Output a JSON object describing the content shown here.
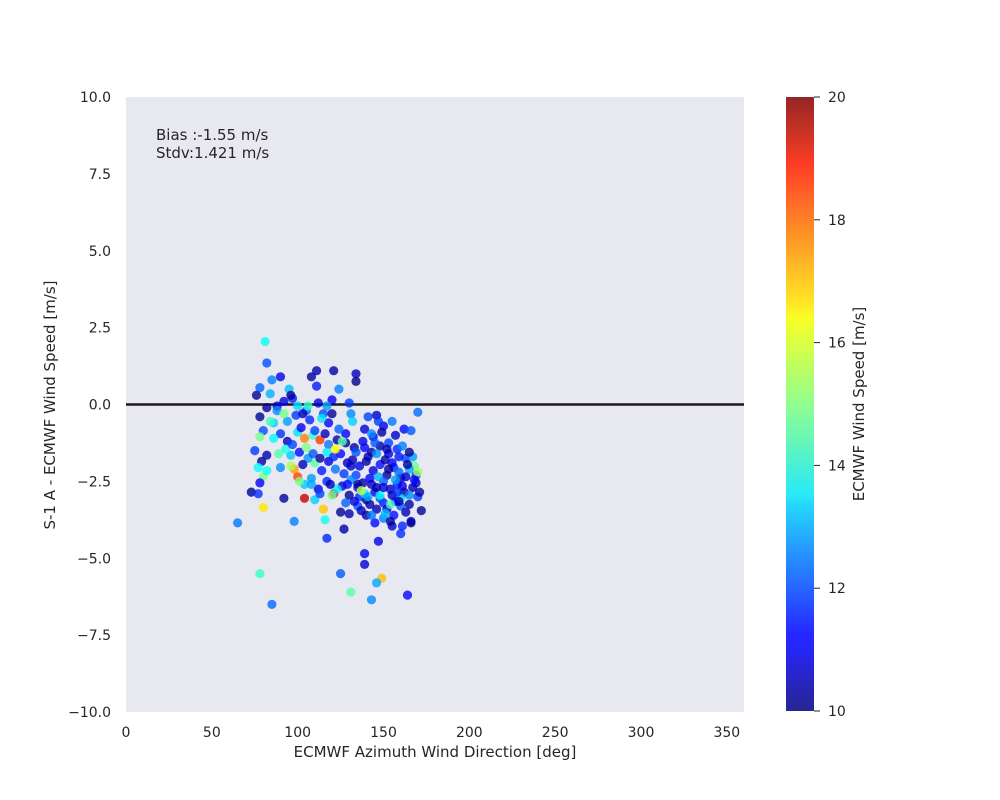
{
  "chart_data": {
    "type": "scatter",
    "title": "",
    "xlabel": "ECMWF Azimuth Wind Direction [deg]",
    "ylabel": "S-1 A - ECMWF Wind Speed [m/s]",
    "xlim": [
      0,
      360
    ],
    "ylim": [
      -10,
      10
    ],
    "xticks": [
      0,
      50,
      100,
      150,
      200,
      250,
      300,
      350
    ],
    "yticks": [
      -10.0,
      -7.5,
      -5.0,
      -2.5,
      0.0,
      2.5,
      5.0,
      7.5,
      10.0
    ],
    "ytick_labels": [
      "−10.0",
      "−7.5",
      "−5.0",
      "−2.5",
      "0.0",
      "2.5",
      "5.0",
      "7.5",
      "10.0"
    ],
    "background": "#e8e8f0",
    "grid": false,
    "zero_line": {
      "y": 0,
      "color": "#1a1a1a"
    },
    "annotations": [
      "Bias :-1.55 m/s",
      "Stdv:1.421 m/s"
    ],
    "colorbar": {
      "label": "ECMWF Wind Speed [m/s]",
      "colormap": "jet",
      "range": [
        10,
        20
      ],
      "ticks": [
        10,
        12,
        14,
        16,
        18,
        20
      ]
    },
    "points": [
      [
        81,
        2.05,
        13.8
      ],
      [
        82,
        1.35,
        12.0
      ],
      [
        78,
        0.55,
        12.2
      ],
      [
        84,
        0.35,
        13.0
      ],
      [
        90,
        0.9,
        11.0
      ],
      [
        97,
        0.2,
        11.5
      ],
      [
        76,
        0.3,
        10.2
      ],
      [
        85,
        0.8,
        12.5
      ],
      [
        108,
        0.9,
        10.3
      ],
      [
        111,
        1.1,
        10.5
      ],
      [
        121,
        1.1,
        10.4
      ],
      [
        134,
        1.0,
        10.6
      ],
      [
        134,
        0.75,
        10.1
      ],
      [
        111,
        0.6,
        11.5
      ],
      [
        124,
        0.5,
        12.5
      ],
      [
        95,
        0.5,
        13.1
      ],
      [
        130,
        0.05,
        11.8
      ],
      [
        120,
        0.15,
        11.2
      ],
      [
        112,
        0.05,
        10.9
      ],
      [
        88,
        -0.05,
        10.8
      ],
      [
        92,
        0.1,
        11.0
      ],
      [
        105,
        -0.2,
        12.2
      ],
      [
        115,
        -0.3,
        12.0
      ],
      [
        82,
        -0.1,
        10.3
      ],
      [
        78,
        -0.4,
        10.2
      ],
      [
        99,
        -0.35,
        11.8
      ],
      [
        107,
        -0.5,
        11.6
      ],
      [
        118,
        -0.6,
        11.2
      ],
      [
        131,
        -0.3,
        12.6
      ],
      [
        141,
        -0.4,
        11.9
      ],
      [
        146,
        -0.35,
        10.7
      ],
      [
        150,
        -0.7,
        11.0
      ],
      [
        155,
        -0.55,
        12.4
      ],
      [
        162,
        -0.8,
        11.3
      ],
      [
        166,
        -0.85,
        12.1
      ],
      [
        170,
        -0.25,
        12.3
      ],
      [
        80,
        -0.85,
        12.0
      ],
      [
        86,
        -0.6,
        13.3
      ],
      [
        90,
        -0.95,
        11.7
      ],
      [
        94,
        -1.2,
        10.6
      ],
      [
        100,
        -0.9,
        13.5
      ],
      [
        104,
        -1.1,
        17.5
      ],
      [
        109,
        -1.0,
        14.2
      ],
      [
        113,
        -1.15,
        18.2
      ],
      [
        118,
        -1.3,
        12.4
      ],
      [
        123,
        -1.15,
        10.4
      ],
      [
        128,
        -0.95,
        11.2
      ],
      [
        133,
        -1.4,
        10.3
      ],
      [
        138,
        -1.2,
        11.0
      ],
      [
        143,
        -1.55,
        10.2
      ],
      [
        148,
        -1.35,
        10.4
      ],
      [
        153,
        -1.6,
        11.1
      ],
      [
        158,
        -1.45,
        11.6
      ],
      [
        163,
        -1.75,
        11.9
      ],
      [
        167,
        -1.7,
        12.8
      ],
      [
        78,
        -1.05,
        14.9
      ],
      [
        82,
        -1.65,
        10.5
      ],
      [
        79,
        -1.85,
        10.3
      ],
      [
        75,
        -1.5,
        11.8
      ],
      [
        77,
        -2.05,
        13.8
      ],
      [
        80,
        -2.35,
        15.0
      ],
      [
        82,
        -2.15,
        13.8
      ],
      [
        90,
        -2.05,
        12.6
      ],
      [
        98,
        -2.1,
        17.2
      ],
      [
        100,
        -2.35,
        18.1
      ],
      [
        104,
        -2.6,
        13.2
      ],
      [
        108,
        -2.4,
        12.8
      ],
      [
        112,
        -2.75,
        11.0
      ],
      [
        117,
        -2.5,
        11.6
      ],
      [
        121,
        -2.9,
        18.8
      ],
      [
        126,
        -2.65,
        10.8
      ],
      [
        130,
        -2.95,
        10.2
      ],
      [
        135,
        -2.7,
        11.4
      ],
      [
        140,
        -3.1,
        10.1
      ],
      [
        145,
        -2.85,
        11.1
      ],
      [
        150,
        -3.2,
        11.5
      ],
      [
        155,
        -2.95,
        10.6
      ],
      [
        160,
        -3.3,
        12.1
      ],
      [
        165,
        -3.25,
        10.4
      ],
      [
        170,
        -3.0,
        11.8
      ],
      [
        172,
        -3.45,
        10.2
      ],
      [
        104,
        -3.05,
        19.3
      ],
      [
        110,
        -3.1,
        13.3
      ],
      [
        115,
        -3.4,
        16.8
      ],
      [
        120,
        -2.95,
        14.8
      ],
      [
        125,
        -3.5,
        10.2
      ],
      [
        130,
        -3.55,
        10.5
      ],
      [
        135,
        -3.3,
        12.0
      ],
      [
        140,
        -3.6,
        10.3
      ],
      [
        145,
        -3.85,
        11.3
      ],
      [
        150,
        -3.7,
        12.5
      ],
      [
        155,
        -3.95,
        10.8
      ],
      [
        160,
        -4.2,
        11.7
      ],
      [
        166,
        -3.8,
        10.9
      ],
      [
        116,
        -3.75,
        13.9
      ],
      [
        98,
        -3.8,
        12.5
      ],
      [
        80,
        -3.35,
        16.5
      ],
      [
        65,
        -3.85,
        12.4
      ],
      [
        73,
        -2.85,
        10.2
      ],
      [
        77,
        -2.9,
        11.7
      ],
      [
        78,
        -2.55,
        11.2
      ],
      [
        92,
        -3.05,
        10.3
      ],
      [
        117,
        -4.35,
        11.6
      ],
      [
        127,
        -4.05,
        10.4
      ],
      [
        147,
        -4.45,
        11.0
      ],
      [
        139,
        -4.85,
        11.1
      ],
      [
        139,
        -5.2,
        10.8
      ],
      [
        125,
        -5.5,
        12.1
      ],
      [
        149,
        -5.65,
        16.9
      ],
      [
        146,
        -5.8,
        12.9
      ],
      [
        131,
        -6.1,
        14.6
      ],
      [
        143,
        -6.35,
        12.6
      ],
      [
        164,
        -6.2,
        11.3
      ],
      [
        85,
        -6.5,
        12.3
      ],
      [
        78,
        -5.5,
        14.3
      ],
      [
        132,
        -1.8,
        10.4
      ],
      [
        136,
        -2.0,
        11.0
      ],
      [
        140,
        -1.85,
        10.2
      ],
      [
        144,
        -2.15,
        10.9
      ],
      [
        148,
        -1.95,
        11.4
      ],
      [
        152,
        -2.3,
        10.3
      ],
      [
        156,
        -2.05,
        11.7
      ],
      [
        160,
        -2.4,
        10.6
      ],
      [
        134,
        -2.3,
        11.9
      ],
      [
        138,
        -2.55,
        10.5
      ],
      [
        142,
        -2.4,
        11.2
      ],
      [
        146,
        -2.7,
        10.2
      ],
      [
        150,
        -2.5,
        12.2
      ],
      [
        154,
        -2.75,
        10.7
      ],
      [
        158,
        -2.6,
        11.5
      ],
      [
        162,
        -2.85,
        10.3
      ],
      [
        136,
        -3.0,
        11.6
      ],
      [
        142,
        -3.25,
        10.4
      ],
      [
        148,
        -3.05,
        12.0
      ],
      [
        152,
        -3.4,
        10.8
      ],
      [
        157,
        -3.15,
        11.3
      ],
      [
        163,
        -3.5,
        10.5
      ],
      [
        144,
        -1.05,
        11.1
      ],
      [
        149,
        -0.9,
        10.3
      ],
      [
        153,
        -1.25,
        11.9
      ],
      [
        157,
        -1.0,
        10.7
      ],
      [
        161,
        -1.35,
        12.5
      ],
      [
        165,
        -1.55,
        10.2
      ],
      [
        168,
        -2.0,
        14.8
      ],
      [
        169,
        -2.3,
        11.6
      ],
      [
        167,
        -2.7,
        10.5
      ],
      [
        165,
        -2.1,
        12.9
      ],
      [
        125,
        -1.6,
        11.3
      ],
      [
        129,
        -1.9,
        10.6
      ],
      [
        127,
        -2.25,
        11.8
      ],
      [
        122,
        -2.1,
        12.4
      ],
      [
        118,
        -1.85,
        10.9
      ],
      [
        114,
        -2.15,
        11.5
      ],
      [
        110,
        -1.9,
        14.6
      ],
      [
        106,
        -1.75,
        12.7
      ],
      [
        103,
        -1.95,
        10.5
      ],
      [
        96,
        -1.65,
        13.2
      ],
      [
        93,
        -1.45,
        14.0
      ],
      [
        97,
        -1.3,
        11.9
      ],
      [
        101,
        -1.55,
        11.3
      ],
      [
        105,
        -1.4,
        15.0
      ],
      [
        109,
        -1.6,
        12.1
      ],
      [
        113,
        -1.75,
        10.3
      ],
      [
        117,
        -1.55,
        13.6
      ],
      [
        121,
        -1.7,
        11.6
      ],
      [
        88,
        -0.2,
        12.6
      ],
      [
        94,
        -0.55,
        12.8
      ],
      [
        102,
        -0.75,
        11.0
      ],
      [
        110,
        -0.85,
        11.9
      ],
      [
        116,
        -0.95,
        10.6
      ],
      [
        124,
        -0.8,
        12.2
      ],
      [
        132,
        -0.55,
        13.3
      ],
      [
        139,
        -0.8,
        10.8
      ],
      [
        143,
        -0.95,
        12.6
      ],
      [
        147,
        -0.55,
        11.8
      ],
      [
        96,
        0.3,
        10.2
      ],
      [
        100,
        -0.05,
        13.4
      ],
      [
        103,
        -0.3,
        10.6
      ],
      [
        117,
        -0.05,
        12.8
      ],
      [
        120,
        -0.3,
        10.2
      ],
      [
        128,
        -1.25,
        10.2
      ],
      [
        134,
        -1.55,
        12.0
      ],
      [
        139,
        -1.4,
        11.3
      ],
      [
        141,
        -1.7,
        10.6
      ],
      [
        146,
        -1.6,
        12.7
      ],
      [
        151,
        -1.8,
        10.4
      ],
      [
        155,
        -1.9,
        11.2
      ],
      [
        159,
        -2.2,
        12.3
      ],
      [
        163,
        -2.35,
        10.8
      ],
      [
        131,
        -2.45,
        12.6
      ],
      [
        135,
        -2.6,
        10.3
      ],
      [
        139,
        -2.9,
        13.5
      ],
      [
        143,
        -2.6,
        10.7
      ],
      [
        147,
        -2.35,
        13.0
      ],
      [
        153,
        -2.1,
        10.2
      ],
      [
        157,
        -2.45,
        12.8
      ],
      [
        161,
        -2.65,
        11.0
      ],
      [
        165,
        -2.95,
        12.6
      ],
      [
        169,
        -2.55,
        10.7
      ],
      [
        170,
        -2.2,
        15.3
      ],
      [
        160,
        -3.05,
        13.4
      ],
      [
        156,
        -3.6,
        11.4
      ],
      [
        151,
        -3.55,
        13.1
      ],
      [
        146,
        -3.4,
        10.5
      ],
      [
        141,
        -3.0,
        12.9
      ],
      [
        137,
        -2.8,
        15.6
      ],
      [
        133,
        -3.15,
        10.9
      ],
      [
        128,
        -3.2,
        12.2
      ],
      [
        123,
        -2.75,
        13.6
      ],
      [
        119,
        -2.6,
        10.5
      ],
      [
        113,
        -2.9,
        11.9
      ],
      [
        108,
        -2.6,
        12.9
      ],
      [
        101,
        -2.5,
        14.9
      ],
      [
        96,
        -2.0,
        15.4
      ],
      [
        89,
        -1.6,
        14.5
      ],
      [
        86,
        -1.1,
        13.7
      ],
      [
        84,
        -0.55,
        14.4
      ],
      [
        92,
        -0.3,
        14.9
      ],
      [
        106,
        -0.05,
        14.2
      ],
      [
        114,
        -0.45,
        13.5
      ],
      [
        122,
        -1.45,
        16.3
      ],
      [
        126,
        -1.2,
        14.6
      ],
      [
        148,
        -2.95,
        13.8
      ],
      [
        154,
        -3.25,
        14.4
      ],
      [
        159,
        -3.15,
        10.5
      ],
      [
        166,
        -3.85,
        10.2
      ],
      [
        161,
        -3.95,
        11.6
      ],
      [
        154,
        -3.8,
        10.3
      ],
      [
        143,
        -3.6,
        12.4
      ],
      [
        137,
        -3.45,
        10.6
      ],
      [
        131,
        -2.0,
        10.8
      ],
      [
        129,
        -2.6,
        11.4
      ],
      [
        145,
        -1.25,
        12.1
      ],
      [
        152,
        -1.45,
        10.5
      ],
      [
        159,
        -1.7,
        11.5
      ],
      [
        164,
        -1.95,
        10.3
      ],
      [
        168,
        -2.45,
        11.3
      ],
      [
        171,
        -2.85,
        10.4
      ],
      [
        158,
        -2.85,
        11.7
      ],
      [
        150,
        -2.7,
        10.9
      ]
    ]
  }
}
